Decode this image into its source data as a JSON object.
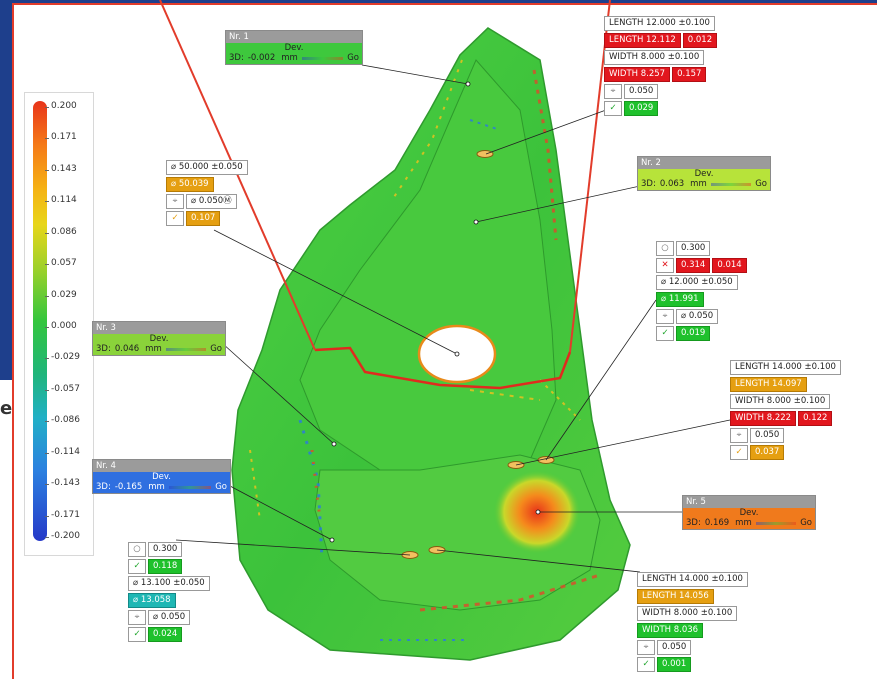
{
  "colorbar": {
    "ticks": [
      "0.200",
      "0.171",
      "0.143",
      "0.114",
      "0.086",
      "0.057",
      "0.029",
      "0.000",
      "-0.029",
      "-0.057",
      "-0.086",
      "-0.114",
      "-0.143",
      "-0.171",
      "-0.200"
    ]
  },
  "side_char": "e",
  "points": [
    {
      "label": "Nr. 1",
      "dev": "Dev.",
      "mode": "3D:",
      "value": "-0.002",
      "unit": "mm",
      "status": "Go",
      "hdr_color": "#9b9b9b",
      "body_color": "#3ec83d"
    },
    {
      "label": "Nr. 2",
      "dev": "Dev.",
      "mode": "3D:",
      "value": "0.063",
      "unit": "mm",
      "status": "Go",
      "hdr_color": "#9b9b9b",
      "body_color": "#b7e33a"
    },
    {
      "label": "Nr. 3",
      "dev": "Dev.",
      "mode": "3D:",
      "value": "0.046",
      "unit": "mm",
      "status": "Go",
      "hdr_color": "#9b9b9b",
      "body_color": "#8ad33a"
    },
    {
      "label": "Nr. 4",
      "dev": "Dev.",
      "mode": "3D:",
      "value": "-0.165",
      "unit": "mm",
      "status": "Go",
      "hdr_color": "#9b9b9b",
      "body_color": "#2f6fe0"
    },
    {
      "label": "Nr. 5",
      "dev": "Dev.",
      "mode": "3D:",
      "value": "0.169",
      "unit": "mm",
      "status": "Go",
      "hdr_color": "#9b9b9b",
      "body_color": "#f07a1c"
    }
  ],
  "slot_top": {
    "length_nom": "LENGTH 12.000 ±0.100",
    "length_act": "LENGTH 12.112",
    "length_dev": "0.012",
    "width_nom": "WIDTH 8.000 ±0.100",
    "width_act": "WIDTH 8.257",
    "width_dev": "0.157",
    "pos_tol": "0.050",
    "pos_act": "0.029"
  },
  "hole_center": {
    "dia_nom": "⌀ 50.000 ±0.050",
    "dia_act": "⌀ 50.039",
    "pos_tol": "⌀ 0.050Ⓜ",
    "pos_act": "0.107"
  },
  "hole_right": {
    "circ_tol": "0.300",
    "circ_act": "0.314",
    "circ_dev": "0.014",
    "dia_nom": "⌀ 12.000 ±0.050",
    "dia_act": "⌀ 11.991",
    "pos_tol": "⌀ 0.050",
    "pos_act": "0.019"
  },
  "slot_right": {
    "length_nom": "LENGTH 14.000 ±0.100",
    "length_act": "LENGTH 14.097",
    "width_nom": "WIDTH 8.000 ±0.100",
    "width_act": "WIDTH 8.222",
    "width_dev": "0.122",
    "pos_tol": "0.050",
    "pos_act": "0.037"
  },
  "hole_left": {
    "circ_tol": "0.300",
    "circ_act": "0.118",
    "dia_nom": "⌀ 13.100 ±0.050",
    "dia_act": "⌀ 13.058",
    "pos_tol": "⌀ 0.050",
    "pos_act": "0.024"
  },
  "slot_bottom": {
    "length_nom": "LENGTH 14.000 ±0.100",
    "length_act": "LENGTH 14.056",
    "width_nom": "WIDTH 8.000 ±0.100",
    "width_act": "WIDTH 8.036",
    "pos_tol": "0.050",
    "pos_act": "0.001"
  },
  "icons": {
    "circle": "circularity-icon",
    "position": "position-icon",
    "check": "check-icon",
    "cross": "cross-icon"
  }
}
